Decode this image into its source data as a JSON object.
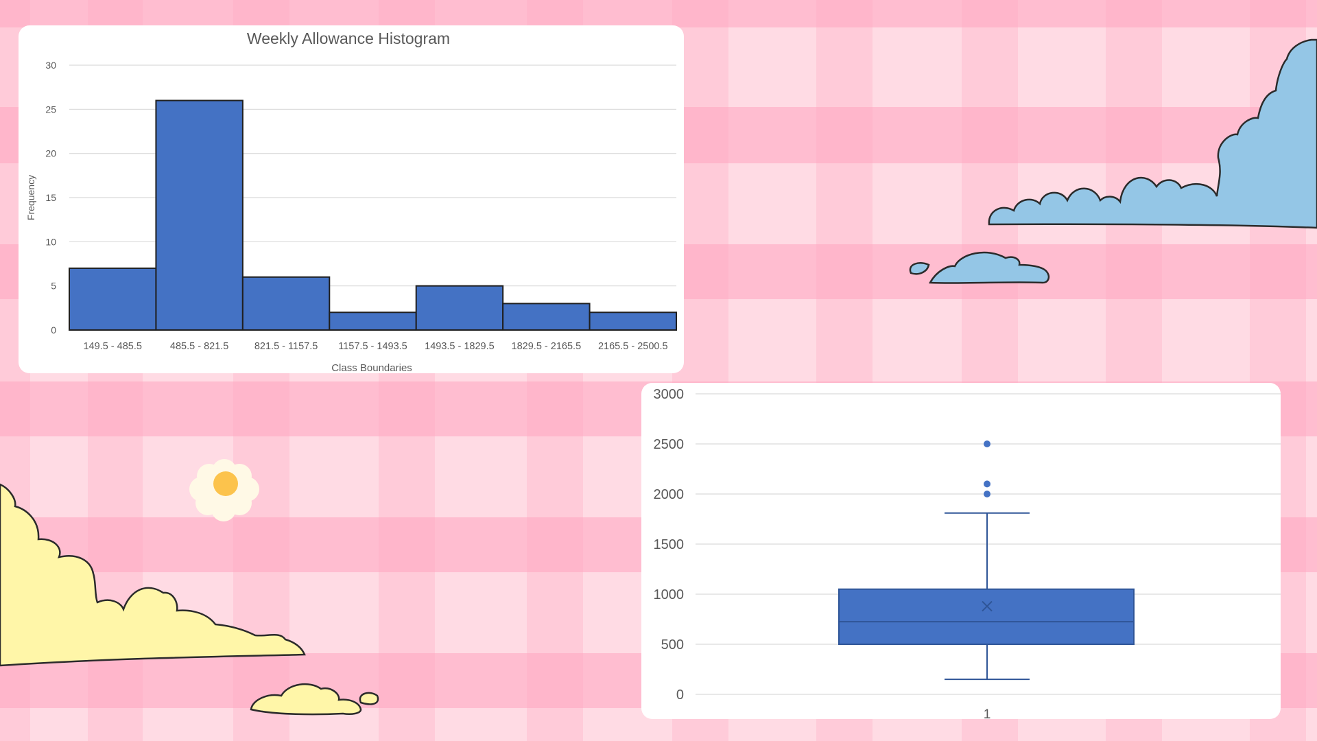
{
  "colors": {
    "background_light": "#ffdbe4",
    "background_stripe": "#ffbdd0",
    "background_cross": "#ffa9c2",
    "bar_fill": "#4472c4",
    "bar_stroke": "#1f1f1f",
    "box_fill": "#4472c4",
    "box_line": "#2f5597",
    "gridline": "#d9d9d9",
    "cloud_blue": "#94c6e6",
    "cloud_yellow": "#fff6a8",
    "flower_petal": "#fff9e6",
    "flower_center": "#fcc34c"
  },
  "chart_data": [
    {
      "type": "bar",
      "title": "Weekly Allowance Histogram",
      "xlabel": "Class Boundaries",
      "ylabel": "Frequency",
      "categories": [
        "149.5 - 485.5",
        "485.5 - 821.5",
        "821.5 - 1157.5",
        "1157.5 - 1493.5",
        "1493.5 - 1829.5",
        "1829.5 - 2165.5",
        "2165.5 - 2500.5"
      ],
      "values": [
        7,
        26,
        6,
        2,
        5,
        3,
        2
      ],
      "ylim": [
        0,
        30
      ],
      "yticks": [
        0,
        5,
        10,
        15,
        20,
        25,
        30
      ],
      "grid": true,
      "legend": "none"
    },
    {
      "type": "box",
      "categories": [
        "1"
      ],
      "whisker_low": 150,
      "q1": 500,
      "median": 725,
      "mean": 880,
      "q3": 1050,
      "whisker_high": 1810,
      "outliers": [
        2000,
        2100,
        2500
      ],
      "ylim": [
        0,
        3000
      ],
      "yticks": [
        0,
        500,
        1000,
        1500,
        2000,
        2500,
        3000
      ],
      "grid": true,
      "legend": "none"
    }
  ]
}
